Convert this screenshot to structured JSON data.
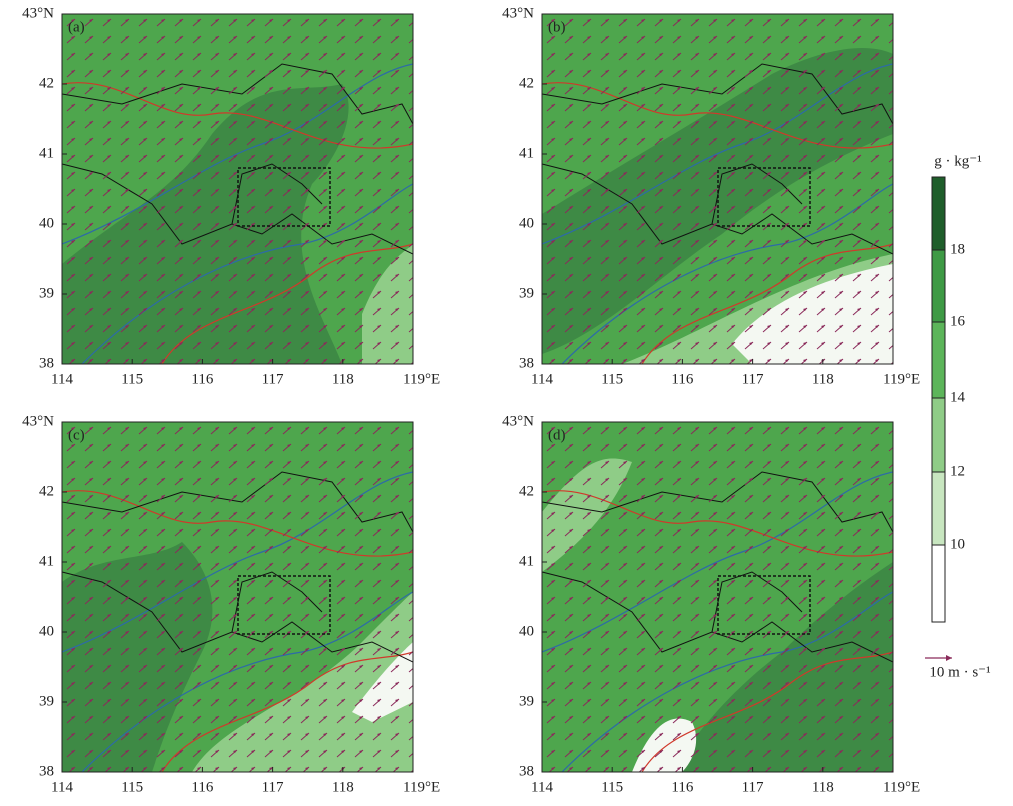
{
  "panels": [
    {
      "label": "(a)"
    },
    {
      "label": "(b)"
    },
    {
      "label": "(c)"
    },
    {
      "label": "(d)"
    }
  ],
  "x_axis": {
    "ticks": [
      "114",
      "115",
      "116",
      "117",
      "118",
      "119°E"
    ]
  },
  "y_axis": {
    "ticks": [
      "38",
      "39",
      "40",
      "41",
      "42",
      "43°N"
    ]
  },
  "colorbar": {
    "unit": "g · kg⁻¹",
    "ticks": [
      "10",
      "12",
      "14",
      "16",
      "18"
    ]
  },
  "wind_reference": {
    "label": "10 m · s⁻¹"
  }
}
